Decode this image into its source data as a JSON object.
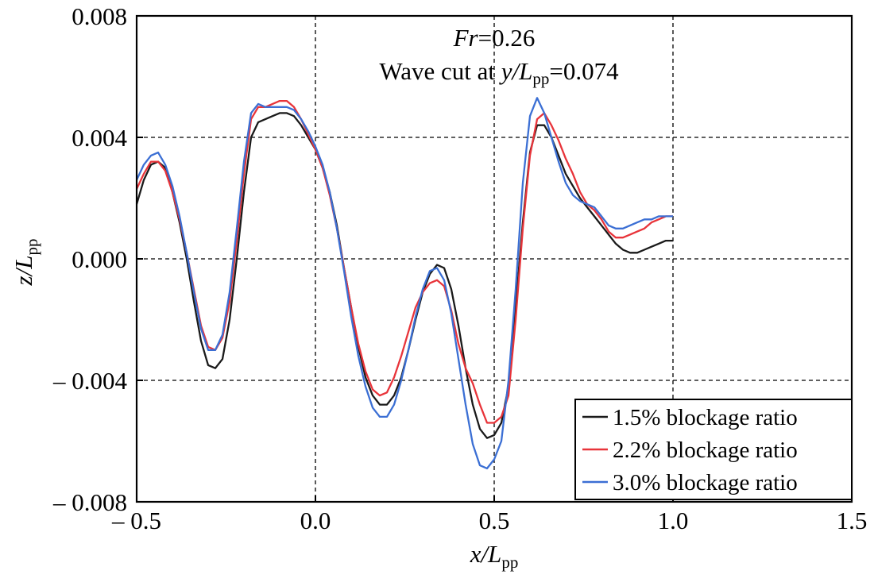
{
  "chart_data": {
    "type": "line",
    "annotation": {
      "line1_italic": "Fr",
      "line1_rest": "=0.26",
      "line2_pre": "Wave cut at ",
      "line2_italic": "y/L",
      "line2_sub": "pp",
      "line2_rest": "=0.074"
    },
    "xlabel": {
      "italic": "x/L",
      "sub": "pp"
    },
    "ylabel": {
      "italic": "z/L",
      "sub": "pp"
    },
    "xlim": [
      -0.5,
      1.5
    ],
    "ylim": [
      -0.008,
      0.008
    ],
    "xticks": [
      {
        "value": -0.5,
        "label": "– 0.5"
      },
      {
        "value": 0.0,
        "label": "0.0"
      },
      {
        "value": 0.5,
        "label": "0.5"
      },
      {
        "value": 1.0,
        "label": "1.0"
      },
      {
        "value": 1.5,
        "label": "1.5"
      }
    ],
    "yticks": [
      {
        "value": 0.008,
        "label": "0.008"
      },
      {
        "value": 0.004,
        "label": "0.004"
      },
      {
        "value": 0.0,
        "label": "0.000"
      },
      {
        "value": -0.004,
        "label": "– 0.004"
      },
      {
        "value": -0.008,
        "label": "– 0.008"
      }
    ],
    "grid": {
      "style": "dashed",
      "x": [
        0.0,
        0.5,
        1.0
      ],
      "y": [
        0.004,
        0.0,
        -0.004
      ]
    },
    "legend_position": "bottom-right",
    "series": [
      {
        "name": "1.5% blockage ratio",
        "color": "#1a1a1a",
        "points": [
          [
            -0.5,
            0.0018
          ],
          [
            -0.48,
            0.0026
          ],
          [
            -0.46,
            0.0031
          ],
          [
            -0.44,
            0.0032
          ],
          [
            -0.42,
            0.003
          ],
          [
            -0.4,
            0.0022
          ],
          [
            -0.38,
            0.0012
          ],
          [
            -0.36,
            0.0
          ],
          [
            -0.34,
            -0.0014
          ],
          [
            -0.32,
            -0.0027
          ],
          [
            -0.3,
            -0.0035
          ],
          [
            -0.28,
            -0.0036
          ],
          [
            -0.26,
            -0.0033
          ],
          [
            -0.24,
            -0.002
          ],
          [
            -0.22,
            0.0
          ],
          [
            -0.2,
            0.0022
          ],
          [
            -0.18,
            0.004
          ],
          [
            -0.16,
            0.0045
          ],
          [
            -0.14,
            0.0046
          ],
          [
            -0.12,
            0.0047
          ],
          [
            -0.1,
            0.0048
          ],
          [
            -0.08,
            0.0048
          ],
          [
            -0.06,
            0.0047
          ],
          [
            -0.04,
            0.0044
          ],
          [
            -0.02,
            0.004
          ],
          [
            0.0,
            0.0036
          ],
          [
            0.02,
            0.003
          ],
          [
            0.04,
            0.0022
          ],
          [
            0.06,
            0.0011
          ],
          [
            0.08,
            -0.0003
          ],
          [
            0.1,
            -0.0016
          ],
          [
            0.12,
            -0.0029
          ],
          [
            0.14,
            -0.0039
          ],
          [
            0.16,
            -0.0045
          ],
          [
            0.18,
            -0.0048
          ],
          [
            0.2,
            -0.0048
          ],
          [
            0.22,
            -0.0045
          ],
          [
            0.24,
            -0.0039
          ],
          [
            0.26,
            -0.003
          ],
          [
            0.28,
            -0.002
          ],
          [
            0.3,
            -0.0011
          ],
          [
            0.32,
            -0.0005
          ],
          [
            0.34,
            -0.0002
          ],
          [
            0.36,
            -0.0003
          ],
          [
            0.38,
            -0.001
          ],
          [
            0.4,
            -0.0022
          ],
          [
            0.42,
            -0.0036
          ],
          [
            0.44,
            -0.0048
          ],
          [
            0.46,
            -0.0056
          ],
          [
            0.48,
            -0.0059
          ],
          [
            0.5,
            -0.0058
          ],
          [
            0.52,
            -0.0054
          ],
          [
            0.54,
            -0.0042
          ],
          [
            0.56,
            -0.0016
          ],
          [
            0.58,
            0.0012
          ],
          [
            0.6,
            0.0035
          ],
          [
            0.62,
            0.0044
          ],
          [
            0.64,
            0.0044
          ],
          [
            0.66,
            0.004
          ],
          [
            0.68,
            0.0034
          ],
          [
            0.7,
            0.0028
          ],
          [
            0.72,
            0.0024
          ],
          [
            0.74,
            0.002
          ],
          [
            0.76,
            0.0017
          ],
          [
            0.78,
            0.0014
          ],
          [
            0.8,
            0.0011
          ],
          [
            0.82,
            0.0008
          ],
          [
            0.84,
            0.0005
          ],
          [
            0.86,
            0.0003
          ],
          [
            0.88,
            0.0002
          ],
          [
            0.9,
            0.0002
          ],
          [
            0.92,
            0.0003
          ],
          [
            0.94,
            0.0004
          ],
          [
            0.96,
            0.0005
          ],
          [
            0.98,
            0.0006
          ],
          [
            1.0,
            0.0006
          ]
        ]
      },
      {
        "name": "2.2% blockage ratio",
        "color": "#e8343a",
        "points": [
          [
            -0.5,
            0.0023
          ],
          [
            -0.48,
            0.0028
          ],
          [
            -0.46,
            0.0032
          ],
          [
            -0.44,
            0.0032
          ],
          [
            -0.42,
            0.0029
          ],
          [
            -0.4,
            0.0022
          ],
          [
            -0.38,
            0.0013
          ],
          [
            -0.36,
            0.0002
          ],
          [
            -0.34,
            -0.001
          ],
          [
            -0.32,
            -0.0022
          ],
          [
            -0.3,
            -0.0029
          ],
          [
            -0.28,
            -0.003
          ],
          [
            -0.26,
            -0.0026
          ],
          [
            -0.24,
            -0.0014
          ],
          [
            -0.22,
            0.0006
          ],
          [
            -0.2,
            0.0028
          ],
          [
            -0.18,
            0.0046
          ],
          [
            -0.16,
            0.005
          ],
          [
            -0.14,
            0.005
          ],
          [
            -0.12,
            0.0051
          ],
          [
            -0.1,
            0.0052
          ],
          [
            -0.08,
            0.0052
          ],
          [
            -0.06,
            0.005
          ],
          [
            -0.04,
            0.0046
          ],
          [
            -0.02,
            0.0041
          ],
          [
            0.0,
            0.0036
          ],
          [
            0.02,
            0.003
          ],
          [
            0.04,
            0.0021
          ],
          [
            0.06,
            0.001
          ],
          [
            0.08,
            -0.0003
          ],
          [
            0.1,
            -0.0016
          ],
          [
            0.12,
            -0.0028
          ],
          [
            0.14,
            -0.0037
          ],
          [
            0.16,
            -0.0043
          ],
          [
            0.18,
            -0.0045
          ],
          [
            0.2,
            -0.0044
          ],
          [
            0.22,
            -0.0039
          ],
          [
            0.24,
            -0.0032
          ],
          [
            0.26,
            -0.0024
          ],
          [
            0.28,
            -0.0016
          ],
          [
            0.3,
            -0.0011
          ],
          [
            0.32,
            -0.0008
          ],
          [
            0.34,
            -0.0007
          ],
          [
            0.36,
            -0.0009
          ],
          [
            0.38,
            -0.0017
          ],
          [
            0.4,
            -0.0028
          ],
          [
            0.42,
            -0.0036
          ],
          [
            0.44,
            -0.0041
          ],
          [
            0.46,
            -0.0048
          ],
          [
            0.48,
            -0.0054
          ],
          [
            0.5,
            -0.0054
          ],
          [
            0.52,
            -0.0052
          ],
          [
            0.54,
            -0.0045
          ],
          [
            0.56,
            -0.002
          ],
          [
            0.58,
            0.001
          ],
          [
            0.6,
            0.0034
          ],
          [
            0.62,
            0.0046
          ],
          [
            0.64,
            0.0048
          ],
          [
            0.66,
            0.0044
          ],
          [
            0.68,
            0.0039
          ],
          [
            0.7,
            0.0033
          ],
          [
            0.72,
            0.0028
          ],
          [
            0.74,
            0.0022
          ],
          [
            0.76,
            0.0018
          ],
          [
            0.78,
            0.0016
          ],
          [
            0.8,
            0.0013
          ],
          [
            0.82,
            0.0009
          ],
          [
            0.84,
            0.0007
          ],
          [
            0.86,
            0.0007
          ],
          [
            0.88,
            0.0008
          ],
          [
            0.9,
            0.0009
          ],
          [
            0.92,
            0.001
          ],
          [
            0.94,
            0.0012
          ],
          [
            0.96,
            0.0013
          ],
          [
            0.98,
            0.0014
          ],
          [
            1.0,
            0.0014
          ]
        ]
      },
      {
        "name": "3.0% blockage ratio",
        "color": "#3b6fd4",
        "points": [
          [
            -0.5,
            0.0026
          ],
          [
            -0.48,
            0.0031
          ],
          [
            -0.46,
            0.0034
          ],
          [
            -0.44,
            0.0035
          ],
          [
            -0.42,
            0.0031
          ],
          [
            -0.4,
            0.0024
          ],
          [
            -0.38,
            0.0014
          ],
          [
            -0.36,
            0.0002
          ],
          [
            -0.34,
            -0.0011
          ],
          [
            -0.32,
            -0.0023
          ],
          [
            -0.3,
            -0.003
          ],
          [
            -0.28,
            -0.003
          ],
          [
            -0.26,
            -0.0025
          ],
          [
            -0.24,
            -0.0011
          ],
          [
            -0.22,
            0.001
          ],
          [
            -0.2,
            0.0032
          ],
          [
            -0.18,
            0.0048
          ],
          [
            -0.16,
            0.0051
          ],
          [
            -0.14,
            0.005
          ],
          [
            -0.12,
            0.005
          ],
          [
            -0.1,
            0.005
          ],
          [
            -0.08,
            0.005
          ],
          [
            -0.06,
            0.0049
          ],
          [
            -0.04,
            0.0046
          ],
          [
            -0.02,
            0.0042
          ],
          [
            0.0,
            0.0037
          ],
          [
            0.02,
            0.0031
          ],
          [
            0.04,
            0.0022
          ],
          [
            0.06,
            0.001
          ],
          [
            0.08,
            -0.0004
          ],
          [
            0.1,
            -0.0019
          ],
          [
            0.12,
            -0.0032
          ],
          [
            0.14,
            -0.0042
          ],
          [
            0.16,
            -0.0049
          ],
          [
            0.18,
            -0.0052
          ],
          [
            0.2,
            -0.0052
          ],
          [
            0.22,
            -0.0048
          ],
          [
            0.24,
            -0.004
          ],
          [
            0.26,
            -0.003
          ],
          [
            0.28,
            -0.0019
          ],
          [
            0.3,
            -0.001
          ],
          [
            0.32,
            -0.0004
          ],
          [
            0.34,
            -0.0003
          ],
          [
            0.36,
            -0.0007
          ],
          [
            0.38,
            -0.0018
          ],
          [
            0.4,
            -0.0033
          ],
          [
            0.42,
            -0.0048
          ],
          [
            0.44,
            -0.0061
          ],
          [
            0.46,
            -0.0068
          ],
          [
            0.48,
            -0.0069
          ],
          [
            0.5,
            -0.0066
          ],
          [
            0.52,
            -0.006
          ],
          [
            0.54,
            -0.004
          ],
          [
            0.56,
            -0.001
          ],
          [
            0.58,
            0.0025
          ],
          [
            0.6,
            0.0047
          ],
          [
            0.62,
            0.0053
          ],
          [
            0.64,
            0.0048
          ],
          [
            0.66,
            0.004
          ],
          [
            0.68,
            0.0032
          ],
          [
            0.7,
            0.0025
          ],
          [
            0.72,
            0.0021
          ],
          [
            0.74,
            0.0019
          ],
          [
            0.76,
            0.0018
          ],
          [
            0.78,
            0.0017
          ],
          [
            0.8,
            0.0014
          ],
          [
            0.82,
            0.0011
          ],
          [
            0.84,
            0.001
          ],
          [
            0.86,
            0.001
          ],
          [
            0.88,
            0.0011
          ],
          [
            0.9,
            0.0012
          ],
          [
            0.92,
            0.0013
          ],
          [
            0.94,
            0.0013
          ],
          [
            0.96,
            0.0014
          ],
          [
            0.98,
            0.0014
          ],
          [
            1.0,
            0.0014
          ]
        ]
      }
    ]
  }
}
